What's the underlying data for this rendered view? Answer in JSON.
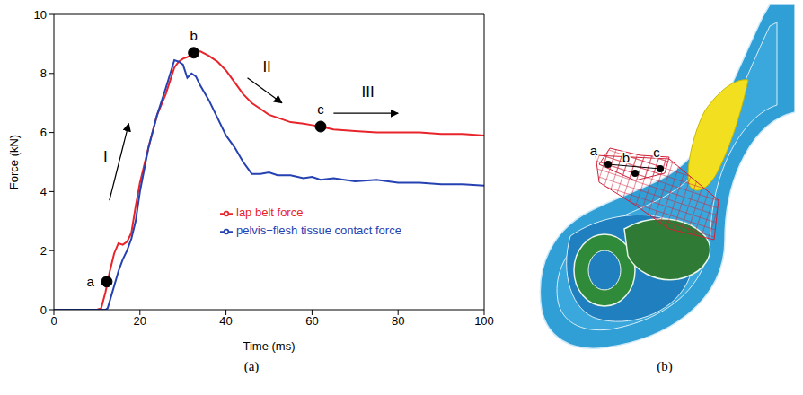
{
  "chart_data": {
    "type": "line",
    "caption": "(a)",
    "xlabel": "Time (ms)",
    "ylabel": "Force (kN)",
    "xlim": [
      0,
      100
    ],
    "xticks": [
      0,
      20,
      40,
      60,
      80,
      100
    ],
    "ylim": [
      0,
      10
    ],
    "yticks": [
      0,
      2,
      4,
      6,
      8,
      10
    ],
    "grid": false,
    "legend": "lower center",
    "x": [
      0,
      10,
      11,
      12,
      12.5,
      13,
      14,
      15,
      16,
      17,
      18,
      19,
      20,
      22,
      24,
      26,
      28,
      29,
      30,
      31,
      32,
      33,
      34,
      36,
      38,
      40,
      42,
      44,
      46,
      48,
      50,
      52,
      55,
      58,
      60,
      62,
      65,
      70,
      75,
      80,
      85,
      90,
      95,
      100
    ],
    "series": [
      {
        "name": "lap belt force",
        "color": "#e8242a",
        "values": [
          0,
          0,
          0.05,
          0.6,
          0.95,
          1.3,
          1.9,
          2.25,
          2.2,
          2.3,
          2.6,
          3.5,
          4.3,
          5.5,
          6.6,
          7.3,
          8.2,
          8.4,
          8.5,
          8.55,
          8.65,
          8.7,
          8.75,
          8.6,
          8.4,
          8.1,
          7.7,
          7.3,
          7.0,
          6.8,
          6.6,
          6.5,
          6.35,
          6.3,
          6.25,
          6.2,
          6.1,
          6.05,
          6.0,
          6.0,
          6.0,
          5.95,
          5.95,
          5.9
        ]
      },
      {
        "name": "pelvis−flesh tissue contact force",
        "color": "#2541b2",
        "values": [
          0,
          0,
          0,
          0,
          0.05,
          0.3,
          0.8,
          1.3,
          1.7,
          2.0,
          2.4,
          3.0,
          4.0,
          5.5,
          6.6,
          7.5,
          8.45,
          8.4,
          8.3,
          7.85,
          8.0,
          7.9,
          7.6,
          7.1,
          6.5,
          5.9,
          5.5,
          5.0,
          4.6,
          4.6,
          4.65,
          4.55,
          4.55,
          4.45,
          4.5,
          4.4,
          4.45,
          4.35,
          4.4,
          4.3,
          4.3,
          4.25,
          4.25,
          4.2
        ]
      }
    ],
    "points": [
      {
        "label": "a",
        "x": 12.3,
        "y": 0.95
      },
      {
        "label": "b",
        "x": 32.5,
        "y": 8.7
      },
      {
        "label": "c",
        "x": 62,
        "y": 6.2
      }
    ],
    "arrows": [
      {
        "label": "I",
        "label_x": 12,
        "label_y": 5.2,
        "from": [
          12.9,
          3.7
        ],
        "to": [
          17.4,
          6.3
        ]
      },
      {
        "label": "II",
        "label_x": 49.5,
        "label_y": 8.25,
        "from": [
          45,
          7.85
        ],
        "to": [
          53,
          7.0
        ]
      },
      {
        "label": "III",
        "label_x": 73,
        "label_y": 7.4,
        "from": [
          65,
          6.65
        ],
        "to": [
          80,
          6.65
        ]
      }
    ]
  },
  "panel_b": {
    "caption": "(b)",
    "points": [
      "a",
      "b",
      "c"
    ]
  }
}
